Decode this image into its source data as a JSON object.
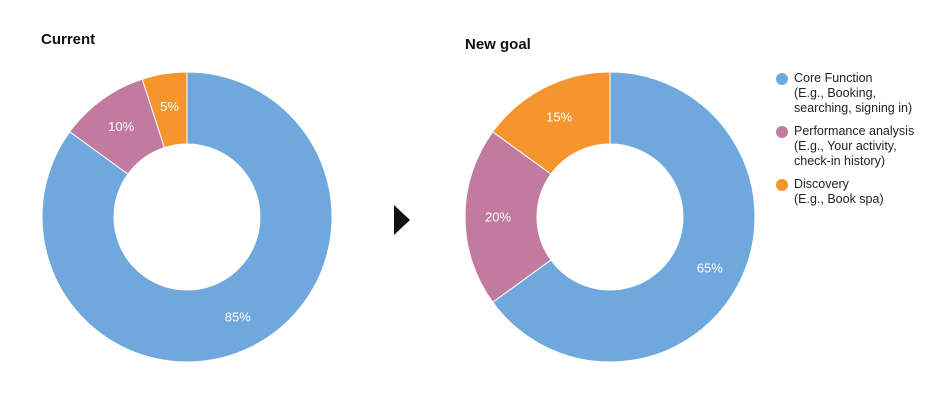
{
  "chart_data": [
    {
      "type": "pie",
      "title": "Current",
      "categories": [
        "Core Function",
        "Performance analysis",
        "Discovery"
      ],
      "values": [
        85,
        10,
        5
      ],
      "labels": [
        "85%",
        "10%",
        "5%"
      ],
      "colors": [
        "#6fa8dc",
        "#c27ba0",
        "#f6952b"
      ]
    },
    {
      "type": "pie",
      "title": "New goal",
      "categories": [
        "Core Function",
        "Performance analysis",
        "Discovery"
      ],
      "values": [
        65,
        20,
        15
      ],
      "labels": [
        "65%",
        "20%",
        "15%"
      ],
      "colors": [
        "#6fa8dc",
        "#c27ba0",
        "#f6952b"
      ]
    }
  ],
  "legend": {
    "position": "right",
    "items": [
      {
        "name": "Core Function",
        "lines": [
          "Core Function",
          "(E.g., Booking,",
          "searching, signing in)"
        ],
        "color": "#6fa8dc"
      },
      {
        "name": "Performance analysis",
        "lines": [
          "Performance analysis",
          "(E.g., Your activity,",
          "check-in history)"
        ],
        "color": "#c27ba0"
      },
      {
        "name": "Discovery",
        "lines": [
          "Discovery",
          "(E.g., Book spa)"
        ],
        "color": "#f6952b"
      }
    ]
  },
  "arrow_icon": "triangle-right-icon"
}
